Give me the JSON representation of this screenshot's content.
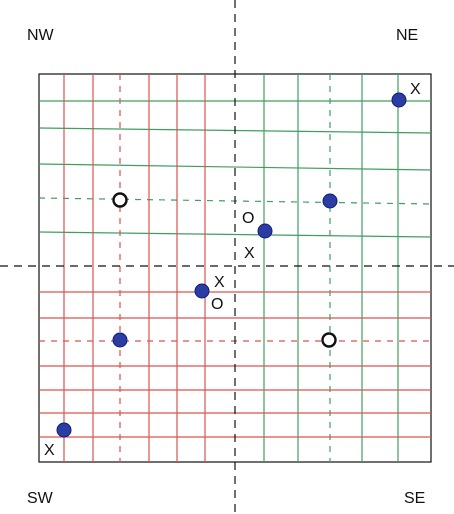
{
  "corner_labels": {
    "nw": "NW",
    "ne": "NE",
    "sw": "SW",
    "se": "SE"
  },
  "point_labels": {
    "ne_top_x": "X",
    "center_o": "O",
    "center_x": "X",
    "mid_x": "X",
    "mid_o": "O",
    "sw_bottom_x": "X"
  },
  "colors": {
    "frame": "#111111",
    "red_grid": "#d9534f",
    "green_grid": "#3f9f5f",
    "axis": "#111111",
    "point_fill": "#2b3ca3",
    "point_stroke": "#0f1e7a",
    "hollow_stroke": "#111111"
  },
  "icons": {
    "filled_point": "filled-circle-marker",
    "hollow_point": "hollow-circle-marker"
  }
}
